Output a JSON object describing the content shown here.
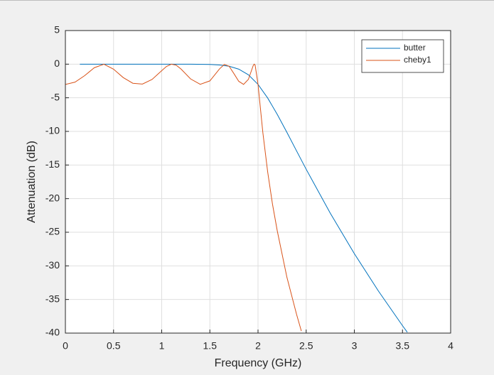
{
  "chart_data": {
    "type": "line",
    "x_label": "Frequency (GHz)",
    "y_label": "Attenuation (dB)",
    "xlim": [
      0,
      4
    ],
    "ylim": [
      -40,
      5
    ],
    "xticks": [
      0,
      0.5,
      1,
      1.5,
      2,
      2.5,
      3,
      3.5,
      4
    ],
    "yticks": [
      5,
      0,
      -5,
      -10,
      -15,
      -20,
      -25,
      -30,
      -35,
      -40
    ],
    "grid": true,
    "legend": "top-right",
    "series": [
      {
        "name": "butter",
        "color": "#0072bd",
        "x": [
          0.15,
          1,
          1.3,
          1.5,
          1.6,
          1.7,
          1.8,
          1.9,
          2,
          2.1,
          2.2,
          2.3,
          2.4,
          2.5,
          2.75,
          3,
          3.25,
          3.5,
          3.55
        ],
        "values": [
          0,
          0,
          0,
          -0.04,
          -0.12,
          -0.31,
          -0.74,
          -1.58,
          -3.01,
          -5.03,
          -7.48,
          -10.15,
          -12.9,
          -15.63,
          -22.16,
          -28.18,
          -33.74,
          -38.89,
          -39.87
        ]
      },
      {
        "name": "cheby1",
        "color": "#d95319",
        "x": [
          0,
          0.1,
          0.2,
          0.3,
          0.4,
          0.5,
          0.6,
          0.7,
          0.8,
          0.9,
          1,
          1.05,
          1.1,
          1.15,
          1.2,
          1.3,
          1.4,
          1.5,
          1.6,
          1.65,
          1.7,
          1.75,
          1.8,
          1.85,
          1.9,
          1.95,
          1.96,
          1.97,
          2,
          2.05,
          2.1,
          2.15,
          2.2,
          2.3,
          2.4,
          2.45
        ],
        "values": [
          -3.01,
          -2.67,
          -1.71,
          -0.53,
          -0.01,
          -0.75,
          -1.99,
          -2.84,
          -2.96,
          -2.27,
          -0.97,
          -0.34,
          -0.01,
          -0.15,
          -0.72,
          -2.2,
          -3,
          -2.49,
          -0.71,
          -0.04,
          -0.31,
          -1.41,
          -2.55,
          -3.01,
          -2.26,
          -0.21,
          0,
          -0.14,
          -3.01,
          -10.15,
          -16,
          -20.8,
          -24.8,
          -31.7,
          -37.2,
          -39.7
        ]
      }
    ]
  }
}
